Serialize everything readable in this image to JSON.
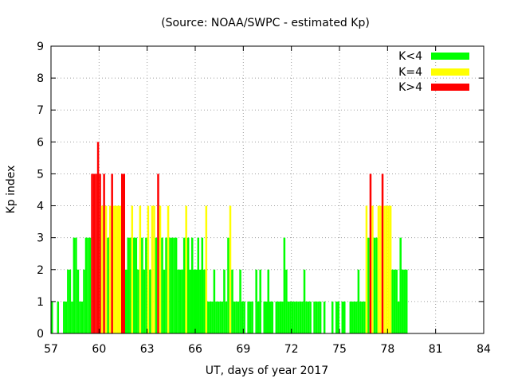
{
  "chart_data": {
    "type": "bar",
    "title": "(Source: NOAA/SWPC - estimated Kp)",
    "xlabel": "UT, days of year 2017",
    "ylabel": "Kp index",
    "xlim": [
      57,
      84
    ],
    "ylim": [
      0,
      9
    ],
    "xticks": [
      57,
      60,
      63,
      66,
      69,
      72,
      75,
      78,
      81,
      84
    ],
    "yticks": [
      0,
      1,
      2,
      3,
      4,
      5,
      6,
      7,
      8,
      9
    ],
    "grid": true,
    "legend_position": "top-right",
    "bin_width_days": 0.125,
    "series": [
      {
        "name": "K<4",
        "color": "#00ff00"
      },
      {
        "name": "K=4",
        "color": "#ffff00"
      },
      {
        "name": "K>4",
        "color": "#ff0000"
      }
    ],
    "start_day": 57,
    "values": [
      1,
      0,
      0,
      1,
      0,
      0,
      1,
      1,
      2,
      2,
      1,
      3,
      3,
      2,
      1,
      1,
      2,
      3,
      3,
      3,
      5,
      5,
      5,
      6,
      5,
      4,
      5,
      4,
      3,
      4,
      5,
      4,
      4,
      4,
      4,
      5,
      5,
      2,
      3,
      3,
      4,
      3,
      3,
      2,
      4,
      3,
      2,
      3,
      4,
      2,
      4,
      4,
      3,
      5,
      4,
      3,
      2,
      3,
      4,
      3,
      3,
      3,
      3,
      2,
      2,
      2,
      3,
      4,
      3,
      2,
      3,
      2,
      2,
      3,
      2,
      3,
      2,
      4,
      1,
      1,
      1,
      2,
      1,
      1,
      1,
      1,
      2,
      1,
      3,
      4,
      2,
      1,
      1,
      1,
      2,
      1,
      1,
      0,
      1,
      1,
      1,
      0,
      2,
      1,
      2,
      0,
      1,
      1,
      2,
      1,
      1,
      0,
      1,
      1,
      1,
      1,
      3,
      2,
      1,
      1,
      1,
      1,
      1,
      1,
      1,
      1,
      2,
      1,
      1,
      1,
      0,
      1,
      1,
      1,
      1,
      0,
      1,
      0,
      0,
      0,
      1,
      0,
      1,
      1,
      0,
      1,
      1,
      0,
      0,
      1,
      1,
      1,
      1,
      2,
      1,
      1,
      1,
      4,
      3,
      5,
      4,
      3,
      3,
      4,
      4,
      5,
      4,
      4,
      4,
      4,
      2,
      2,
      2,
      1,
      3,
      2,
      2,
      2
    ]
  }
}
